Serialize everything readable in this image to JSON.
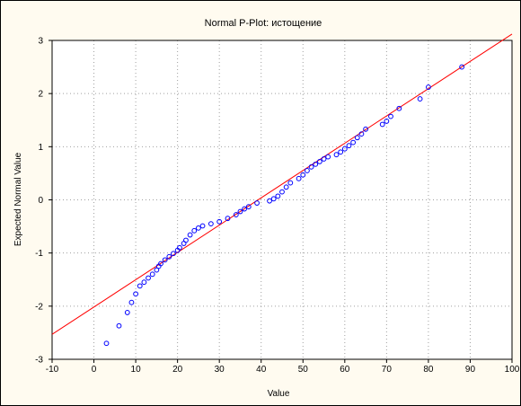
{
  "chart_data": {
    "type": "scatter",
    "title": "Normal P-Plot: истощение",
    "xlabel": "Value",
    "ylabel": "Expected Normal Value",
    "xlim": [
      -10,
      100
    ],
    "ylim": [
      -3,
      3
    ],
    "xticks": [
      -10,
      0,
      10,
      20,
      30,
      40,
      50,
      60,
      70,
      80,
      90,
      100
    ],
    "yticks": [
      -3,
      -2,
      -1,
      0,
      1,
      2,
      3
    ],
    "grid": true,
    "colors": {
      "points": "#0000ff",
      "line": "#ff0000",
      "grid": "#a0a0a0"
    },
    "reference_line": {
      "x": [
        -10,
        100
      ],
      "y": [
        -2.53,
        3.12
      ]
    },
    "points": [
      [
        3,
        -2.7
      ],
      [
        6,
        -2.37
      ],
      [
        8,
        -2.12
      ],
      [
        9,
        -1.93
      ],
      [
        10,
        -1.77
      ],
      [
        11,
        -1.62
      ],
      [
        12,
        -1.55
      ],
      [
        13,
        -1.47
      ],
      [
        14,
        -1.4
      ],
      [
        15,
        -1.32
      ],
      [
        15.5,
        -1.25
      ],
      [
        16,
        -1.2
      ],
      [
        17,
        -1.13
      ],
      [
        18,
        -1.07
      ],
      [
        19,
        -1.01
      ],
      [
        20,
        -0.95
      ],
      [
        20.5,
        -0.9
      ],
      [
        21.5,
        -0.82
      ],
      [
        22,
        -0.76
      ],
      [
        23,
        -0.66
      ],
      [
        24,
        -0.58
      ],
      [
        25,
        -0.53
      ],
      [
        26,
        -0.49
      ],
      [
        28,
        -0.45
      ],
      [
        30,
        -0.41
      ],
      [
        32,
        -0.35
      ],
      [
        34,
        -0.28
      ],
      [
        35,
        -0.22
      ],
      [
        36,
        -0.17
      ],
      [
        37,
        -0.13
      ],
      [
        39,
        -0.06
      ],
      [
        42,
        -0.02
      ],
      [
        43,
        0.02
      ],
      [
        44,
        0.07
      ],
      [
        45,
        0.15
      ],
      [
        46,
        0.24
      ],
      [
        47,
        0.32
      ],
      [
        49,
        0.4
      ],
      [
        50,
        0.47
      ],
      [
        51,
        0.55
      ],
      [
        52,
        0.62
      ],
      [
        53,
        0.67
      ],
      [
        54,
        0.72
      ],
      [
        55,
        0.77
      ],
      [
        56,
        0.81
      ],
      [
        58,
        0.85
      ],
      [
        59,
        0.9
      ],
      [
        60,
        0.96
      ],
      [
        61,
        1.02
      ],
      [
        62,
        1.08
      ],
      [
        63,
        1.17
      ],
      [
        64,
        1.24
      ],
      [
        65,
        1.33
      ],
      [
        69,
        1.42
      ],
      [
        70,
        1.48
      ],
      [
        71,
        1.57
      ],
      [
        73,
        1.72
      ],
      [
        78,
        1.9
      ],
      [
        80,
        2.12
      ],
      [
        88,
        2.5
      ]
    ]
  }
}
